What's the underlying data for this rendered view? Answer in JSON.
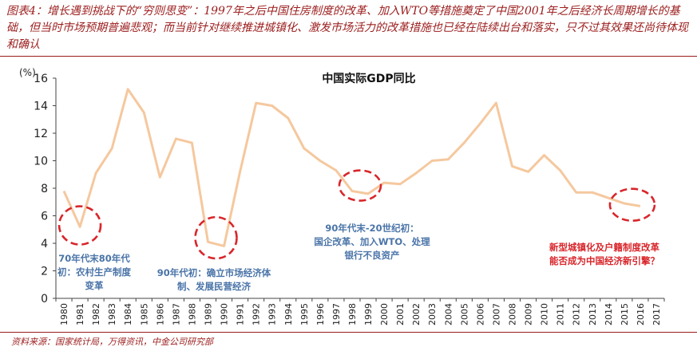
{
  "header": {
    "text": "图表4：增长遇到挑战下的“穷则思变”：1997年之后中国住房制度的改革、加入WTO等措施奠定了中国2001年之后经济长周期增长的基础，但当时市场预期普遍悲观；而当前针对继续推进城镇化、激发市场活力的改革措施也已经在陆续出台和落实，只不过其效果还尚待体现和确认"
  },
  "footer": {
    "source": "资料来源：国家统计局，万得资讯，中金公司研究部"
  },
  "colors": {
    "line": "#f5c89e",
    "circle": "#d8262b",
    "blue_text": "#4a74a8",
    "red_text": "#d8262b",
    "accent": "#9b1c1c"
  },
  "chart_data": {
    "type": "line",
    "title": "中国实际GDP同比",
    "ylabel": "(%)",
    "ylim": [
      0,
      16
    ],
    "yticks": [
      0,
      2,
      4,
      6,
      8,
      10,
      12,
      14,
      16
    ],
    "grid": false,
    "x": [
      "1980",
      "1981",
      "1982",
      "1983",
      "1984",
      "1985",
      "1986",
      "1987",
      "1988",
      "1989",
      "1990",
      "1991",
      "1992",
      "1993",
      "1994",
      "1995",
      "1996",
      "1997",
      "1998",
      "1999",
      "2000",
      "2001",
      "2002",
      "2003",
      "2004",
      "2005",
      "2006",
      "2007",
      "2008",
      "2009",
      "2010",
      "2011",
      "2012",
      "2013",
      "2014",
      "2015",
      "2016",
      "2017"
    ],
    "series": [
      {
        "values": [
          7.8,
          5.2,
          9.1,
          10.9,
          15.2,
          13.5,
          8.8,
          11.6,
          11.3,
          4.1,
          3.8,
          9.2,
          14.2,
          14.0,
          13.1,
          10.9,
          10.0,
          9.3,
          7.8,
          7.6,
          8.4,
          8.3,
          9.1,
          10.0,
          10.1,
          11.3,
          12.7,
          14.2,
          9.6,
          9.2,
          10.4,
          9.3,
          7.7,
          7.7,
          7.3,
          6.9,
          6.7,
          null
        ]
      }
    ],
    "annotations": [
      {
        "lines": [
          "70年代末80年代",
          "初：农村生产制度",
          "变革"
        ],
        "color": "blue",
        "circle_x": "1981",
        "circle_y": 5.3
      },
      {
        "lines": [
          "90年代初：确立市场经济体",
          "制、发展民营经济"
        ],
        "color": "blue",
        "circle_x": "1989.5",
        "circle_y": 4.4
      },
      {
        "lines": [
          "90年代末-20世纪初：",
          "国企改革、加入WTO、处理",
          "银行不良资产"
        ],
        "color": "blue",
        "circle_x": "1998.5",
        "circle_y": 8.2
      },
      {
        "lines": [
          "新型城镇化及户籍制度改革",
          "能否成为中国经济新引擎？"
        ],
        "color": "red",
        "circle_x": "2015.5",
        "circle_y": 6.8
      }
    ]
  }
}
